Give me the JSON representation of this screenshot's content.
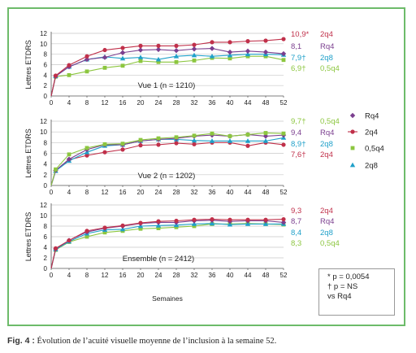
{
  "caption": {
    "label": "Fig. 4 :",
    "text": "Évolution de l’acuité visuelle moyenne de l’inclusion à la semaine 52."
  },
  "footnote": [
    "* p = 0,0054",
    "† p = NS",
    "vs Rq4"
  ],
  "legend": [
    {
      "name": "Rq4",
      "color": "#7b3f8f",
      "marker": "diamond"
    },
    {
      "name": "2q4",
      "color": "#c0304a",
      "marker": "circle"
    },
    {
      "name": "0,5q4",
      "color": "#8cc63f",
      "marker": "square"
    },
    {
      "name": "2q8",
      "color": "#1fa0c9",
      "marker": "triangle"
    }
  ],
  "chart_data": [
    {
      "type": "line",
      "title": "Vue 1 (n = 1210)",
      "ylabel": "Lettres ETDRS",
      "xlabel": "",
      "x": [
        0,
        1,
        4,
        8,
        12,
        16,
        20,
        24,
        28,
        32,
        36,
        40,
        44,
        48,
        52
      ],
      "xticks": [
        0,
        4,
        8,
        12,
        16,
        20,
        24,
        28,
        32,
        36,
        40,
        44,
        48,
        52
      ],
      "ylim": [
        0,
        12
      ],
      "yticks": [
        0,
        2,
        4,
        6,
        8,
        10,
        12
      ],
      "grid": true,
      "series": [
        {
          "name": "2q4",
          "color": "#c0304a",
          "marker": "circle",
          "values": [
            0,
            3.9,
            5.9,
            7.6,
            8.8,
            9.2,
            9.6,
            9.6,
            9.6,
            9.8,
            10.3,
            10.3,
            10.5,
            10.6,
            10.9
          ],
          "end_label": "10,9*",
          "end_group": "2q4"
        },
        {
          "name": "Rq4",
          "color": "#7b3f8f",
          "marker": "diamond",
          "values": [
            0,
            3.8,
            5.6,
            7.0,
            7.4,
            8.3,
            8.8,
            8.9,
            8.7,
            9.0,
            9.1,
            8.4,
            8.6,
            8.4,
            8.1
          ],
          "end_label": "8,1",
          "end_group": "Rq4"
        },
        {
          "name": "2q8",
          "color": "#1fa0c9",
          "marker": "triangle",
          "values": [
            0,
            3.8,
            5.6,
            7.0,
            7.5,
            7.2,
            7.4,
            7.0,
            7.6,
            7.8,
            7.6,
            7.8,
            8.0,
            8.0,
            7.9
          ],
          "end_label": "7,9†",
          "end_group": "2q8"
        },
        {
          "name": "0,5q4",
          "color": "#8cc63f",
          "marker": "square",
          "values": [
            0,
            3.7,
            4.0,
            4.7,
            5.4,
            5.8,
            6.7,
            6.5,
            6.5,
            6.8,
            7.3,
            7.2,
            7.6,
            7.6,
            6.9
          ],
          "end_label": "6,9†",
          "end_group": "0,5q4"
        }
      ]
    },
    {
      "type": "line",
      "title": "Vue 2 (n = 1202)",
      "ylabel": "Lettres ETDRS",
      "xlabel": "",
      "x": [
        0,
        1,
        4,
        8,
        12,
        16,
        20,
        24,
        28,
        32,
        36,
        40,
        44,
        48,
        52
      ],
      "xticks": [
        0,
        4,
        8,
        12,
        16,
        20,
        24,
        28,
        32,
        36,
        40,
        44,
        48,
        52
      ],
      "ylim": [
        0,
        12
      ],
      "yticks": [
        0,
        2,
        4,
        6,
        8,
        10,
        12
      ],
      "grid": true,
      "series": [
        {
          "name": "0,5q4",
          "color": "#8cc63f",
          "marker": "square",
          "values": [
            0,
            3.0,
            5.8,
            7.0,
            7.7,
            7.8,
            8.5,
            8.8,
            9.0,
            9.3,
            9.7,
            9.2,
            9.5,
            9.8,
            9.7
          ],
          "end_label": "9,7†",
          "end_group": "0,5q4"
        },
        {
          "name": "Rq4",
          "color": "#7b3f8f",
          "marker": "diamond",
          "values": [
            0,
            2.8,
            4.9,
            6.7,
            7.6,
            7.6,
            8.3,
            8.6,
            8.8,
            9.2,
            9.4,
            9.2,
            9.5,
            9.2,
            9.4
          ],
          "end_label": "9,4",
          "end_group": "Rq4"
        },
        {
          "name": "2q8",
          "color": "#1fa0c9",
          "marker": "triangle",
          "values": [
            0,
            2.7,
            4.6,
            6.2,
            7.4,
            7.6,
            8.3,
            8.6,
            8.6,
            8.4,
            8.3,
            8.3,
            8.3,
            8.3,
            8.9
          ],
          "end_label": "8,9†",
          "end_group": "2q8"
        },
        {
          "name": "2q4",
          "color": "#c0304a",
          "marker": "circle",
          "values": [
            0,
            2.8,
            4.8,
            5.6,
            6.2,
            6.7,
            7.5,
            7.6,
            7.9,
            7.7,
            8.0,
            8.0,
            7.4,
            8.0,
            7.6
          ],
          "end_label": "7,6†",
          "end_group": "2q4"
        }
      ]
    },
    {
      "type": "line",
      "title": "Ensemble (n = 2412)",
      "ylabel": "Lettres ETDRS",
      "xlabel": "Semaines",
      "x": [
        0,
        1,
        4,
        8,
        12,
        16,
        20,
        24,
        28,
        32,
        36,
        40,
        44,
        48,
        52
      ],
      "xticks": [
        0,
        4,
        8,
        12,
        16,
        20,
        24,
        28,
        32,
        36,
        40,
        44,
        48,
        52
      ],
      "ylim": [
        0,
        12
      ],
      "yticks": [
        0,
        2,
        4,
        6,
        8,
        10,
        12
      ],
      "grid": true,
      "series": [
        {
          "name": "2q4",
          "color": "#c0304a",
          "marker": "circle",
          "values": [
            0,
            3.8,
            5.3,
            7.1,
            7.7,
            8.1,
            8.6,
            8.9,
            9.0,
            9.2,
            9.3,
            9.2,
            9.2,
            9.2,
            9.3
          ],
          "end_label": "9,3",
          "end_group": "2q4"
        },
        {
          "name": "Rq4",
          "color": "#7b3f8f",
          "marker": "diamond",
          "values": [
            0,
            3.7,
            5.3,
            6.9,
            7.6,
            8.0,
            8.5,
            8.7,
            8.7,
            9.0,
            9.1,
            8.9,
            9.0,
            9.0,
            8.7
          ],
          "end_label": "8,7",
          "end_group": "Rq4"
        },
        {
          "name": "2q8",
          "color": "#1fa0c9",
          "marker": "triangle",
          "values": [
            0,
            3.6,
            5.1,
            6.6,
            7.3,
            7.4,
            8.0,
            8.1,
            8.2,
            8.4,
            8.5,
            8.3,
            8.4,
            8.4,
            8.4
          ],
          "end_label": "8,4",
          "end_group": "2q8"
        },
        {
          "name": "0,5q4",
          "color": "#8cc63f",
          "marker": "square",
          "values": [
            0,
            3.5,
            5.0,
            6.0,
            6.8,
            7.1,
            7.5,
            7.6,
            7.8,
            8.0,
            8.4,
            8.4,
            8.5,
            8.4,
            8.3
          ],
          "end_label": "8,3",
          "end_group": "0,5q4"
        }
      ]
    }
  ]
}
